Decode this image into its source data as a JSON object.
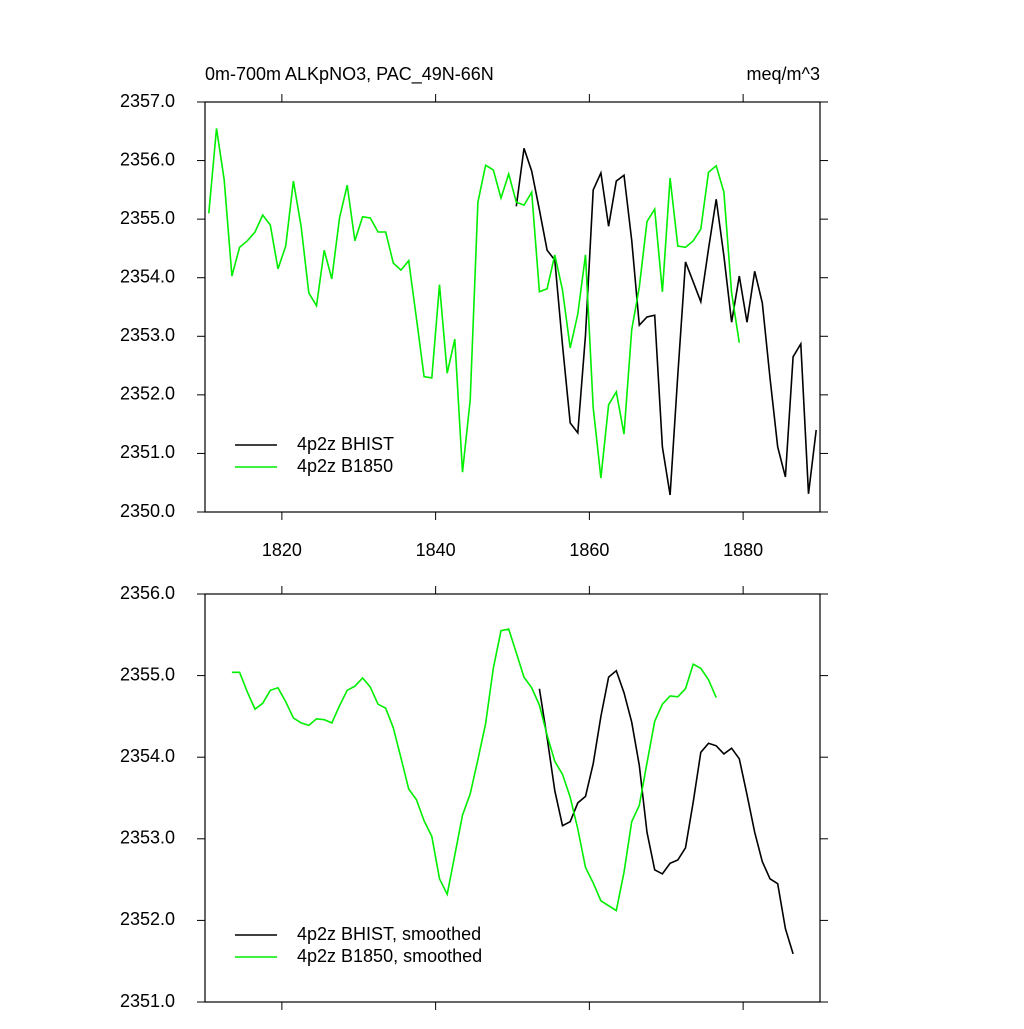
{
  "chart_data": [
    {
      "type": "line",
      "title": "0m-700m ALKpNO3, PAC_49N-66N",
      "units": "meq/m^3",
      "x": [
        1810.5,
        1811.5,
        1812.5,
        1813.5,
        1814.5,
        1815.5,
        1816.5,
        1817.5,
        1818.5,
        1819.5,
        1820.5,
        1821.5,
        1822.5,
        1823.5,
        1824.5,
        1825.5,
        1826.5,
        1827.5,
        1828.5,
        1829.5,
        1830.5,
        1831.5,
        1832.5,
        1833.5,
        1834.5,
        1835.5,
        1836.5,
        1837.5,
        1838.5,
        1839.5,
        1840.5,
        1841.5,
        1842.5,
        1843.5,
        1844.5,
        1845.5,
        1846.5,
        1847.5,
        1848.5,
        1849.5,
        1850.5,
        1851.5,
        1852.5,
        1853.5,
        1854.5,
        1855.5,
        1856.5,
        1857.5,
        1858.5,
        1859.5,
        1860.5,
        1861.5,
        1862.5,
        1863.5,
        1864.5,
        1865.5,
        1866.5,
        1867.5,
        1868.5,
        1869.5,
        1870.5,
        1871.5,
        1872.5,
        1873.5,
        1874.5,
        1875.5,
        1876.5,
        1877.5,
        1878.5,
        1879.5,
        1880.5,
        1881.5,
        1882.5,
        1883.5,
        1884.5,
        1885.5,
        1886.5,
        1887.5,
        1888.5,
        1889.5
      ],
      "series": [
        {
          "name": "4p2z BHIST",
          "color": "#000000",
          "values": [
            null,
            null,
            null,
            null,
            null,
            null,
            null,
            null,
            null,
            null,
            null,
            null,
            null,
            null,
            null,
            null,
            null,
            null,
            null,
            null,
            null,
            null,
            null,
            null,
            null,
            null,
            null,
            null,
            null,
            null,
            null,
            null,
            null,
            null,
            null,
            null,
            null,
            null,
            null,
            null,
            2355.22,
            2356.21,
            2355.82,
            2355.16,
            2354.47,
            2354.3,
            2352.85,
            2351.52,
            2351.35,
            2353.02,
            2355.5,
            2355.79,
            2354.88,
            2355.65,
            2355.75,
            2354.64,
            2353.19,
            2353.33,
            2353.36,
            2351.11,
            2350.29,
            2352.34,
            2354.27,
            2353.93,
            2353.59,
            2354.49,
            2355.34,
            2354.37,
            2353.24,
            2354.03,
            2353.24,
            2354.11,
            2353.57,
            2352.29,
            2351.11,
            2350.6,
            2352.65,
            2352.87,
            2350.31,
            2351.4
          ]
        },
        {
          "name": "4p2z B1850",
          "color": "#00ee00",
          "values": [
            2355.1,
            2356.55,
            2355.67,
            2354.03,
            2354.52,
            2354.63,
            2354.78,
            2355.07,
            2354.9,
            2354.15,
            2354.54,
            2355.65,
            2354.88,
            2353.74,
            2353.52,
            2354.47,
            2353.98,
            2355.02,
            2355.58,
            2354.63,
            2355.04,
            2355.02,
            2354.78,
            2354.78,
            2354.25,
            2354.13,
            2354.29,
            2353.31,
            2352.31,
            2352.29,
            2353.88,
            2352.37,
            2352.95,
            2350.68,
            2351.91,
            2355.29,
            2355.92,
            2355.84,
            2355.36,
            2355.77,
            2355.29,
            2355.24,
            2355.46,
            2353.76,
            2353.81,
            2354.39,
            2353.79,
            2352.8,
            2353.38,
            2354.39,
            2351.78,
            2350.58,
            2351.83,
            2352.05,
            2351.33,
            2353.11,
            2353.84,
            2354.96,
            2355.17,
            2353.76,
            2355.7,
            2354.54,
            2354.52,
            2354.63,
            2354.83,
            2355.8,
            2355.91,
            2355.46,
            2353.74,
            2352.89,
            null,
            null,
            null,
            null,
            null,
            null,
            null,
            null,
            null,
            null
          ]
        }
      ],
      "xlim": [
        1810,
        1890
      ],
      "xticks": [
        1820,
        1840,
        1860,
        1880
      ],
      "ylim": [
        2350,
        2357
      ],
      "yticks": [
        {
          "value": 2350,
          "label": "2350.0"
        },
        {
          "value": 2351,
          "label": "2351.0"
        },
        {
          "value": 2352,
          "label": "2352.0"
        },
        {
          "value": 2353,
          "label": "2353.0"
        },
        {
          "value": 2354,
          "label": "2354.0"
        },
        {
          "value": 2355,
          "label": "2355.0"
        },
        {
          "value": 2356,
          "label": "2356.0"
        },
        {
          "value": 2357,
          "label": "2357.0"
        }
      ],
      "legend": "lower left"
    },
    {
      "type": "line",
      "x": [
        1810.5,
        1811.5,
        1812.5,
        1813.5,
        1814.5,
        1815.5,
        1816.5,
        1817.5,
        1818.5,
        1819.5,
        1820.5,
        1821.5,
        1822.5,
        1823.5,
        1824.5,
        1825.5,
        1826.5,
        1827.5,
        1828.5,
        1829.5,
        1830.5,
        1831.5,
        1832.5,
        1833.5,
        1834.5,
        1835.5,
        1836.5,
        1837.5,
        1838.5,
        1839.5,
        1840.5,
        1841.5,
        1842.5,
        1843.5,
        1844.5,
        1845.5,
        1846.5,
        1847.5,
        1848.5,
        1849.5,
        1850.5,
        1851.5,
        1852.5,
        1853.5,
        1854.5,
        1855.5,
        1856.5,
        1857.5,
        1858.5,
        1859.5,
        1860.5,
        1861.5,
        1862.5,
        1863.5,
        1864.5,
        1865.5,
        1866.5,
        1867.5,
        1868.5,
        1869.5,
        1870.5,
        1871.5,
        1872.5,
        1873.5,
        1874.5,
        1875.5,
        1876.5,
        1877.5,
        1878.5,
        1879.5,
        1880.5,
        1881.5,
        1882.5,
        1883.5,
        1884.5,
        1885.5,
        1886.5,
        1887.5,
        1888.5,
        1889.5
      ],
      "series": [
        {
          "name": "4p2z BHIST, smoothed",
          "color": "#000000",
          "values": [
            null,
            null,
            null,
            null,
            null,
            null,
            null,
            null,
            null,
            null,
            null,
            null,
            null,
            null,
            null,
            null,
            null,
            null,
            null,
            null,
            null,
            null,
            null,
            null,
            null,
            null,
            null,
            null,
            null,
            null,
            null,
            null,
            null,
            null,
            null,
            null,
            null,
            null,
            null,
            null,
            null,
            null,
            null,
            2354.84,
            2354.24,
            2353.59,
            2353.16,
            2353.21,
            2353.44,
            2353.52,
            2353.92,
            2354.5,
            2354.98,
            2355.06,
            2354.79,
            2354.43,
            2353.9,
            2353.08,
            2352.62,
            2352.57,
            2352.7,
            2352.74,
            2352.89,
            2353.45,
            2354.06,
            2354.17,
            2354.14,
            2354.04,
            2354.11,
            2353.98,
            2353.54,
            2353.08,
            2352.72,
            2352.51,
            2352.45,
            2351.9,
            2351.59,
            null,
            null,
            null
          ]
        },
        {
          "name": "4p2z B1850, smoothed",
          "color": "#00ee00",
          "values": [
            null,
            null,
            null,
            2355.04,
            2355.04,
            2354.8,
            2354.59,
            2354.66,
            2354.82,
            2354.85,
            2354.68,
            2354.48,
            2354.42,
            2354.39,
            2354.47,
            2354.46,
            2354.42,
            2354.63,
            2354.82,
            2354.87,
            2354.97,
            2354.86,
            2354.65,
            2354.6,
            2354.36,
            2353.99,
            2353.61,
            2353.48,
            2353.22,
            2353.03,
            2352.51,
            2352.32,
            2352.8,
            2353.29,
            2353.55,
            2353.97,
            2354.41,
            2355.09,
            2355.55,
            2355.57,
            2355.28,
            2354.98,
            2354.85,
            2354.64,
            2354.27,
            2353.95,
            2353.79,
            2353.51,
            2353.12,
            2352.65,
            2352.46,
            2352.24,
            2352.18,
            2352.12,
            2352.59,
            2353.21,
            2353.41,
            2353.93,
            2354.44,
            2354.65,
            2354.75,
            2354.74,
            2354.84,
            2355.14,
            2355.09,
            2354.95,
            2354.73,
            null,
            null,
            null,
            null,
            null,
            null,
            null,
            null,
            null,
            null,
            null,
            null,
            null
          ]
        }
      ],
      "xlim": [
        1810,
        1890
      ],
      "ylim": [
        2351,
        2356
      ],
      "yticks": [
        {
          "value": 2351,
          "label": "2351.0"
        },
        {
          "value": 2352,
          "label": "2352.0"
        },
        {
          "value": 2353,
          "label": "2353.0"
        },
        {
          "value": 2354,
          "label": "2354.0"
        },
        {
          "value": 2355,
          "label": "2355.0"
        },
        {
          "value": 2356,
          "label": "2356.0"
        }
      ],
      "legend": "lower left"
    }
  ]
}
